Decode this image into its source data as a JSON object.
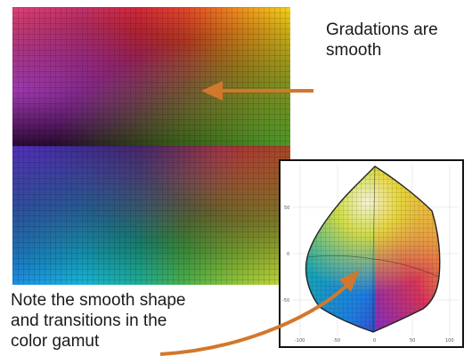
{
  "captions": {
    "top": [
      "Gradations are",
      "smooth"
    ],
    "bottom": [
      "Note the smooth shape",
      "and transitions in the",
      "color gamut"
    ]
  },
  "gamut_plot": {
    "y_ticks": [
      "50",
      "0",
      "-50"
    ],
    "x_ticks": [
      "-100",
      "-50",
      "0",
      "50",
      "100"
    ]
  },
  "colors": {
    "arrow": "#d2782c",
    "border": "#111111"
  }
}
